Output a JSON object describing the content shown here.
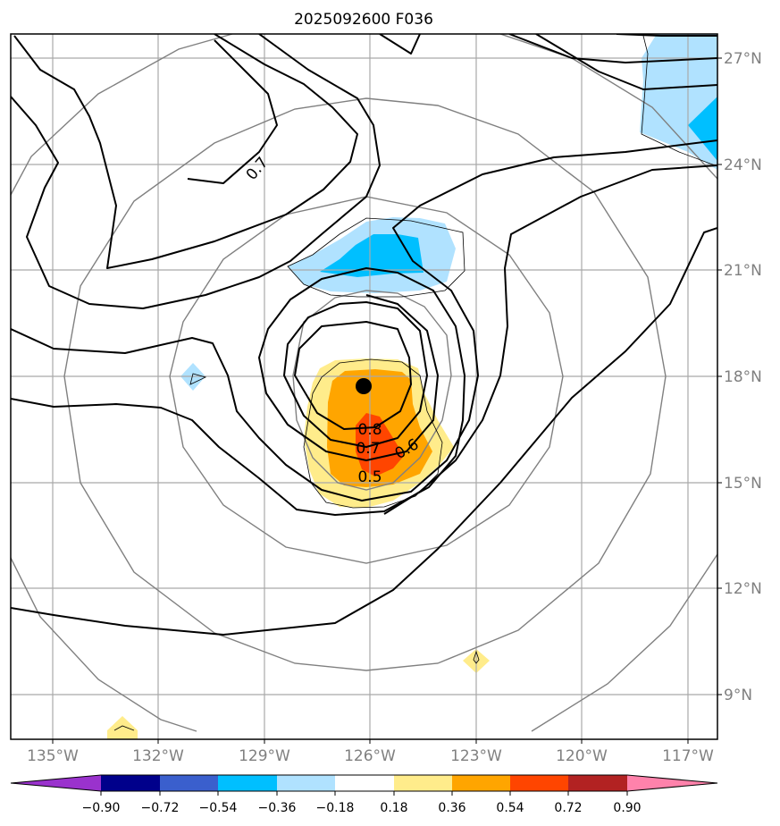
{
  "title": "2025092600 F036",
  "longitude_labels": [
    "135°W",
    "132°W",
    "129°W",
    "126°W",
    "123°W",
    "120°W",
    "117°W"
  ],
  "latitude_labels": [
    "27°N",
    "24°N",
    "21°N",
    "18°N",
    "15°N",
    "12°N",
    "9°N"
  ],
  "contour_labels": {
    "upper_left": "0.7",
    "center_08": "0.8",
    "center_07": "0.7",
    "center_06": "0.6",
    "center_05": "0.5"
  },
  "storm_center": {
    "lon": -126.2,
    "lat": 17.7
  },
  "colorbar": {
    "tick_labels": [
      "−0.90",
      "−0.72",
      "−0.54",
      "−0.36",
      "−0.18",
      "0.18",
      "0.36",
      "0.54",
      "0.72",
      "0.90"
    ],
    "colors": {
      "under": "#9a32cd",
      "b1": "#00008b",
      "b2": "#3a5fcd",
      "b3": "#00bfff",
      "b4": "#b0e2ff",
      "b5": "#ffffff",
      "b6": "#ffec8b",
      "b7": "#ffa500",
      "b8": "#ff4500",
      "b9": "#b22222",
      "over": "#ff82ab"
    }
  }
}
